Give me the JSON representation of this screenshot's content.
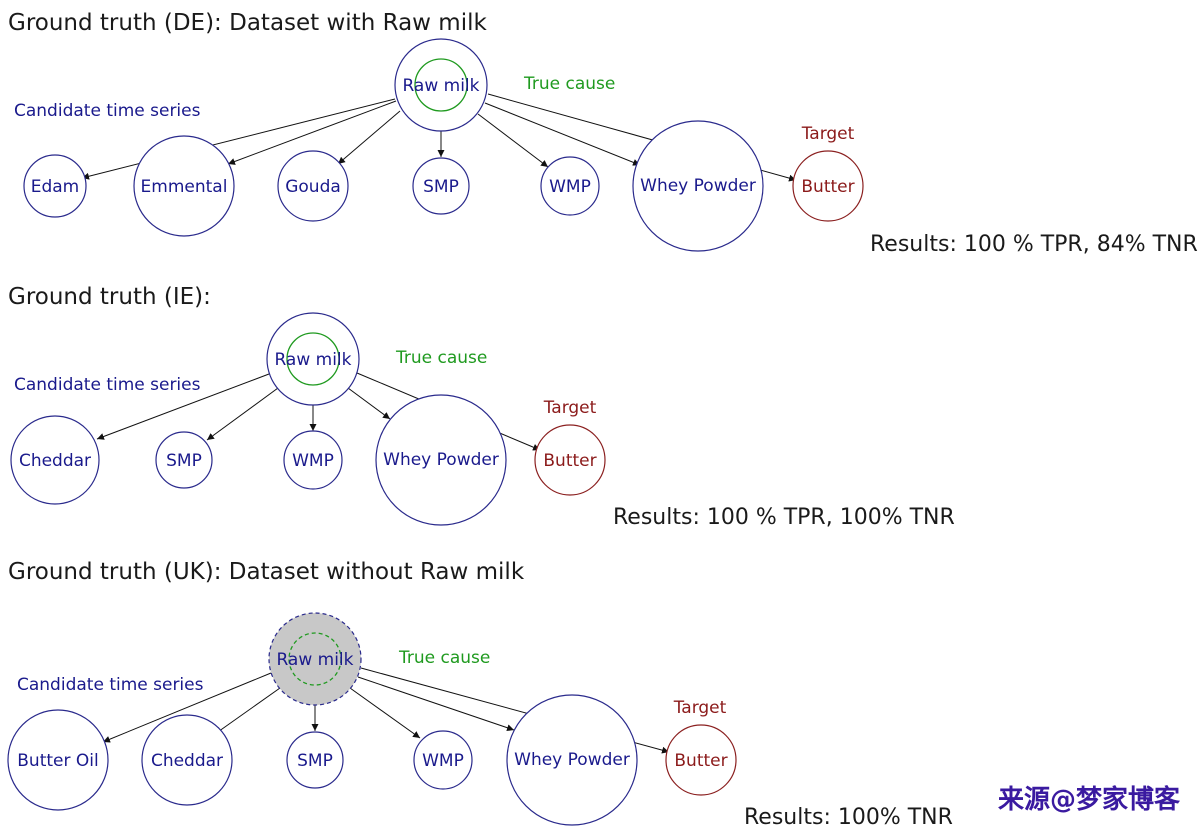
{
  "colors": {
    "candidate": "#2a2a8c",
    "true_cause": "#1f9a1f",
    "target": "#8b1a1a",
    "edge": "#111111",
    "missing_fill": "#c8c8c8"
  },
  "diagrams": [
    {
      "title": "Ground truth (DE): Dataset with Raw milk",
      "candidate_label": "Candidate time series",
      "true_cause_label": "True cause",
      "target_label": "Target",
      "results": "Results: 100 % TPR, 84% TNR",
      "cause": {
        "label": "Raw milk",
        "missing": false
      },
      "children": [
        {
          "label": "Edam"
        },
        {
          "label": "Emmental"
        },
        {
          "label": "Gouda"
        },
        {
          "label": "SMP"
        },
        {
          "label": "WMP"
        },
        {
          "label": "Whey Powder"
        },
        {
          "label": "Butter",
          "target": true
        }
      ]
    },
    {
      "title": "Ground truth (IE):",
      "candidate_label": "Candidate time series",
      "true_cause_label": "True cause",
      "target_label": "Target",
      "results": "Results: 100 % TPR, 100% TNR",
      "cause": {
        "label": "Raw milk",
        "missing": false
      },
      "children": [
        {
          "label": "Cheddar"
        },
        {
          "label": "SMP"
        },
        {
          "label": "WMP"
        },
        {
          "label": "Whey Powder"
        },
        {
          "label": "Butter",
          "target": true
        }
      ]
    },
    {
      "title": "Ground truth (UK): Dataset without Raw milk",
      "candidate_label": "Candidate time series",
      "true_cause_label": "True cause",
      "target_label": "Target",
      "results": "Results: 100% TNR",
      "cause": {
        "label": "Raw milk",
        "missing": true
      },
      "children": [
        {
          "label": "Butter Oil"
        },
        {
          "label": "Cheddar"
        },
        {
          "label": "SMP"
        },
        {
          "label": "WMP"
        },
        {
          "label": "Whey Powder"
        },
        {
          "label": "Butter",
          "target": true
        }
      ]
    }
  ],
  "watermark": "来源@梦家博客"
}
